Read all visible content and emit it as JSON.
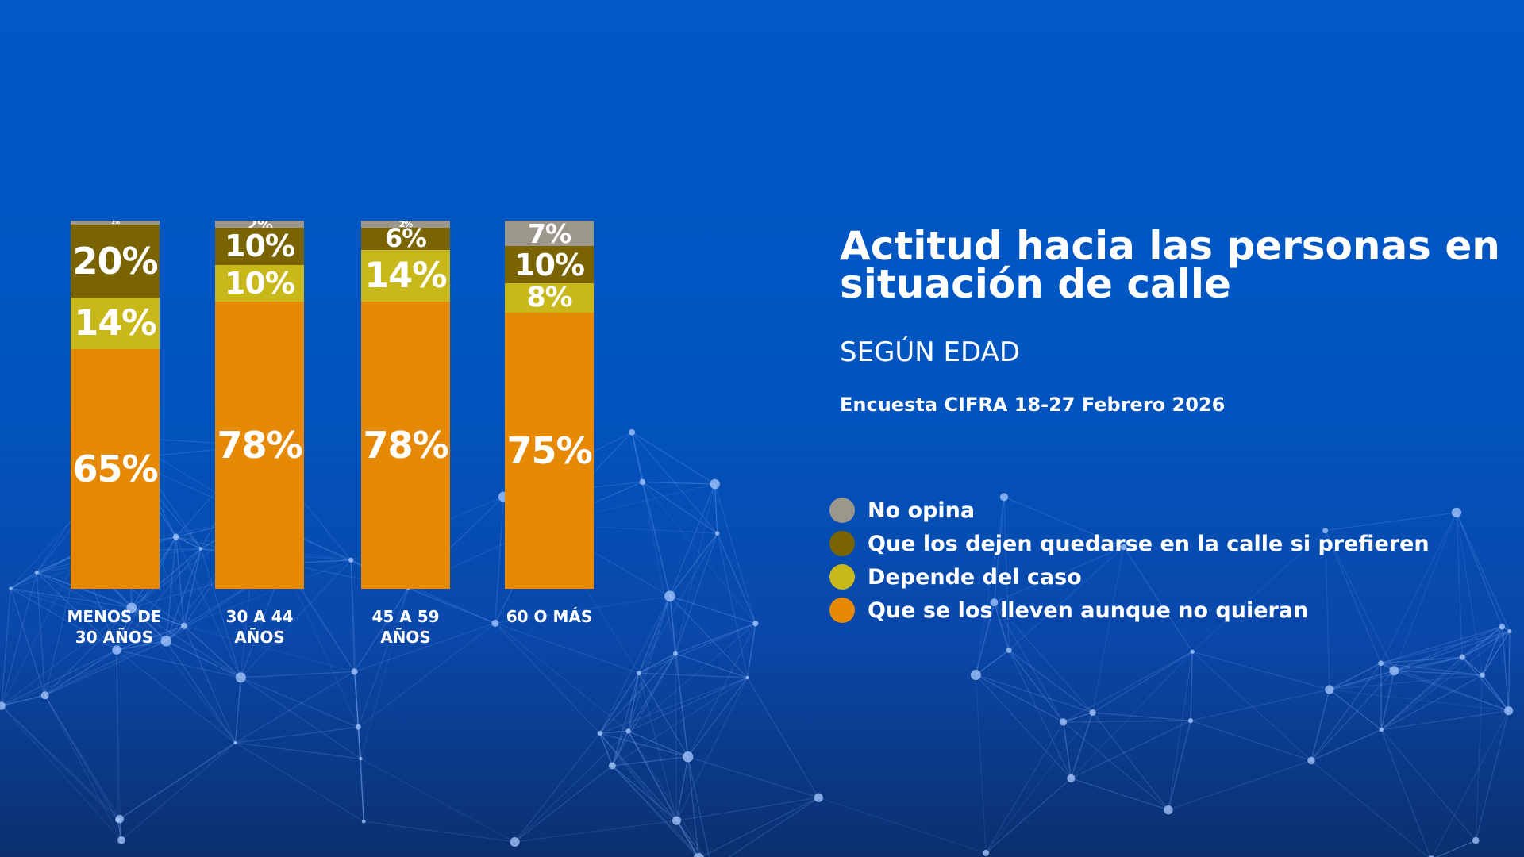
{
  "chart_data": {
    "type": "bar",
    "stacked": true,
    "title": "Actitud hacia las personas en situación de calle",
    "subtitle": "SEGÚN EDAD",
    "source": "Encuesta CIFRA 18-27 Febrero 2026",
    "categories": [
      "MENOS DE 30 AÑOS",
      "30 A 44 AÑOS",
      "45 A 59 AÑOS",
      "60 O MÁS"
    ],
    "series": [
      {
        "name": "No opina",
        "color": "#9b978b",
        "values": [
          1,
          2,
          2,
          7
        ]
      },
      {
        "name": "Que los dejen quedarse en la calle si prefieren",
        "color": "#7a6402",
        "values": [
          20,
          10,
          6,
          10
        ]
      },
      {
        "name": "Depende del caso",
        "color": "#c9b81a",
        "values": [
          14,
          10,
          14,
          8
        ]
      },
      {
        "name": "Que se los lleven aunque no quieran",
        "color": "#e68905",
        "values": [
          65,
          78,
          78,
          75
        ]
      }
    ],
    "ylim": [
      0,
      100
    ],
    "legend": "right"
  }
}
